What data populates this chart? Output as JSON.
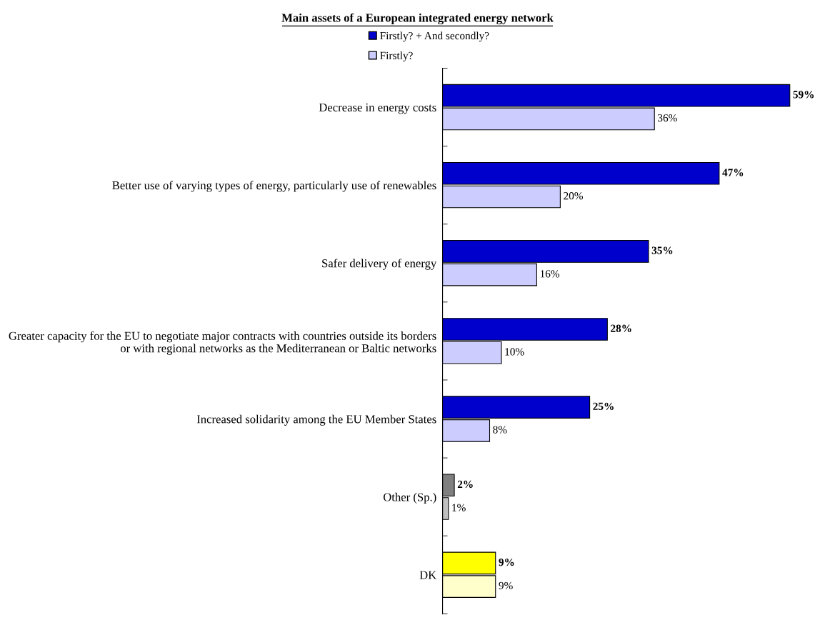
{
  "chart_data": {
    "type": "bar",
    "orientation": "horizontal",
    "title": "Main assets of a European integrated energy network",
    "categories": [
      "Decrease in energy costs",
      "Better use of varying types of energy, particularly use of renewables",
      "Safer delivery of energy",
      "Greater capacity for the EU to negotiate major contracts with countries outside its borders or with regional networks as the Mediterranean or Baltic networks",
      "Increased solidarity among the EU Member States",
      "Other (Sp.)",
      "DK"
    ],
    "series": [
      {
        "name": "Firstly? + And secondly?",
        "color": "#0000cc",
        "colors": [
          "#0000cc",
          "#0000cc",
          "#0000cc",
          "#0000cc",
          "#0000cc",
          "#808080",
          "#ffff00"
        ],
        "values": [
          59,
          47,
          35,
          28,
          25,
          2,
          9
        ],
        "value_labels": [
          "59%",
          "47%",
          "35%",
          "28%",
          "25%",
          "2%",
          "9%"
        ]
      },
      {
        "name": "Firstly?",
        "color": "#ccccff",
        "colors": [
          "#ccccff",
          "#ccccff",
          "#ccccff",
          "#ccccff",
          "#ccccff",
          "#c0c0c0",
          "#ffffcc"
        ],
        "values": [
          36,
          20,
          16,
          10,
          8,
          1,
          9
        ],
        "value_labels": [
          "36%",
          "20%",
          "16%",
          "10%",
          "8%",
          "1%",
          "9%"
        ]
      }
    ],
    "legend": "top left",
    "grid": false
  }
}
